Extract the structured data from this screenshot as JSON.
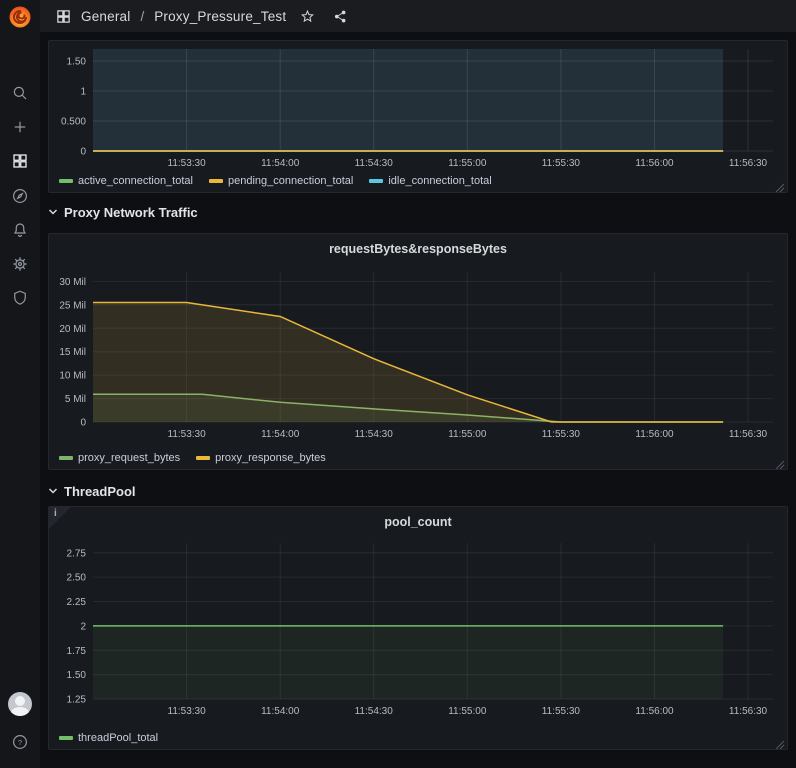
{
  "topbar": {
    "breadcrumb": {
      "folder": "General",
      "separator": "/",
      "title": "Proxy_Pressure_Test"
    }
  },
  "sidebar": {
    "items": [
      "search",
      "create",
      "dashboards",
      "explore",
      "alerting",
      "configuration",
      "server-admin"
    ],
    "bottom_items": [
      "user-avatar",
      "help"
    ]
  },
  "sections": [
    {
      "label": "Proxy Network Traffic"
    },
    {
      "label": "ThreadPool"
    }
  ],
  "icons": {
    "info_glyph": "i"
  },
  "colors": {
    "green": "#73bf69",
    "yellow": "#eab839",
    "cyan": "#58c8e0",
    "panel_bg": "#171a1f",
    "page_bg": "#0d0f13",
    "teal_plot_bg": "#23303a"
  },
  "chart_data": [
    {
      "type": "line",
      "title": "",
      "x_domain_sec": [
        0,
        218
      ],
      "data_end_sec": 202,
      "x_ticks": [
        {
          "sec": 30,
          "label": "11:53:30"
        },
        {
          "sec": 60,
          "label": "11:54:00"
        },
        {
          "sec": 90,
          "label": "11:54:30"
        },
        {
          "sec": 120,
          "label": "11:55:00"
        },
        {
          "sec": 150,
          "label": "11:55:30"
        },
        {
          "sec": 180,
          "label": "11:56:00"
        },
        {
          "sec": 210,
          "label": "11:56:30"
        }
      ],
      "ylim": [
        0,
        1.7
      ],
      "y_ticks": [
        {
          "v": 0,
          "label": "0"
        },
        {
          "v": 0.5,
          "label": "0.500"
        },
        {
          "v": 1,
          "label": "1"
        },
        {
          "v": 1.5,
          "label": "1.50"
        }
      ],
      "plot_bg": "#23303a",
      "grid_color": "rgba(255,255,255,0.10)",
      "series": [
        {
          "name": "active_connection_total",
          "color": "#73bf69",
          "z": 1,
          "points": [
            [
              0,
              0
            ],
            [
              202,
              0
            ]
          ]
        },
        {
          "name": "pending_connection_total",
          "color": "#eab839",
          "z": 3,
          "points": [
            [
              0,
              0
            ],
            [
              202,
              0
            ]
          ]
        },
        {
          "name": "idle_connection_total",
          "color": "#58c8e0",
          "z": 2,
          "points": [
            [
              0,
              0
            ],
            [
              202,
              0
            ]
          ]
        }
      ]
    },
    {
      "type": "line",
      "title": "requestBytes&responseBytes",
      "x_domain_sec": [
        0,
        218
      ],
      "data_end_sec": 202,
      "x_ticks": [
        {
          "sec": 30,
          "label": "11:53:30"
        },
        {
          "sec": 60,
          "label": "11:54:00"
        },
        {
          "sec": 90,
          "label": "11:54:30"
        },
        {
          "sec": 120,
          "label": "11:55:00"
        },
        {
          "sec": 150,
          "label": "11:55:30"
        },
        {
          "sec": 180,
          "label": "11:56:00"
        },
        {
          "sec": 210,
          "label": "11:56:30"
        }
      ],
      "ylim": [
        0,
        32
      ],
      "y_ticks": [
        {
          "v": 0,
          "label": "0"
        },
        {
          "v": 5,
          "label": "5 Mil"
        },
        {
          "v": 10,
          "label": "10 Mil"
        },
        {
          "v": 15,
          "label": "15 Mil"
        },
        {
          "v": 20,
          "label": "20 Mil"
        },
        {
          "v": 25,
          "label": "25 Mil"
        },
        {
          "v": 30,
          "label": "30 Mil"
        }
      ],
      "grid_color": "rgba(255,255,255,0.07)",
      "series": [
        {
          "name": "proxy_request_bytes",
          "color": "#7eb26d",
          "fill_opacity": 0.1,
          "points": [
            [
              0,
              5.9
            ],
            [
              35,
              5.9
            ],
            [
              60,
              4.2
            ],
            [
              90,
              2.8
            ],
            [
              120,
              1.5
            ],
            [
              150,
              0
            ],
            [
              202,
              0
            ]
          ]
        },
        {
          "name": "proxy_response_bytes",
          "color": "#eab839",
          "fill_opacity": 0.13,
          "points": [
            [
              0,
              25.5
            ],
            [
              30,
              25.5
            ],
            [
              60,
              22.5
            ],
            [
              90,
              13.5
            ],
            [
              120,
              5.8
            ],
            [
              147,
              0
            ],
            [
              202,
              0
            ]
          ]
        }
      ]
    },
    {
      "type": "line",
      "title": "pool_count",
      "x_domain_sec": [
        0,
        218
      ],
      "data_end_sec": 202,
      "x_ticks": [
        {
          "sec": 30,
          "label": "11:53:30"
        },
        {
          "sec": 60,
          "label": "11:54:00"
        },
        {
          "sec": 90,
          "label": "11:54:30"
        },
        {
          "sec": 120,
          "label": "11:55:00"
        },
        {
          "sec": 150,
          "label": "11:55:30"
        },
        {
          "sec": 180,
          "label": "11:56:00"
        },
        {
          "sec": 210,
          "label": "11:56:30"
        }
      ],
      "ylim": [
        1.25,
        2.85
      ],
      "y_ticks": [
        {
          "v": 1.25,
          "label": "1.25"
        },
        {
          "v": 1.5,
          "label": "1.50"
        },
        {
          "v": 1.75,
          "label": "1.75"
        },
        {
          "v": 2,
          "label": "2"
        },
        {
          "v": 2.25,
          "label": "2.25"
        },
        {
          "v": 2.5,
          "label": "2.50"
        },
        {
          "v": 2.75,
          "label": "2.75"
        }
      ],
      "grid_color": "rgba(255,255,255,0.07)",
      "series": [
        {
          "name": "threadPool_total",
          "color": "#73bf69",
          "fill_opacity": 0.08,
          "points": [
            [
              0,
              2
            ],
            [
              202,
              2
            ]
          ]
        }
      ]
    }
  ]
}
